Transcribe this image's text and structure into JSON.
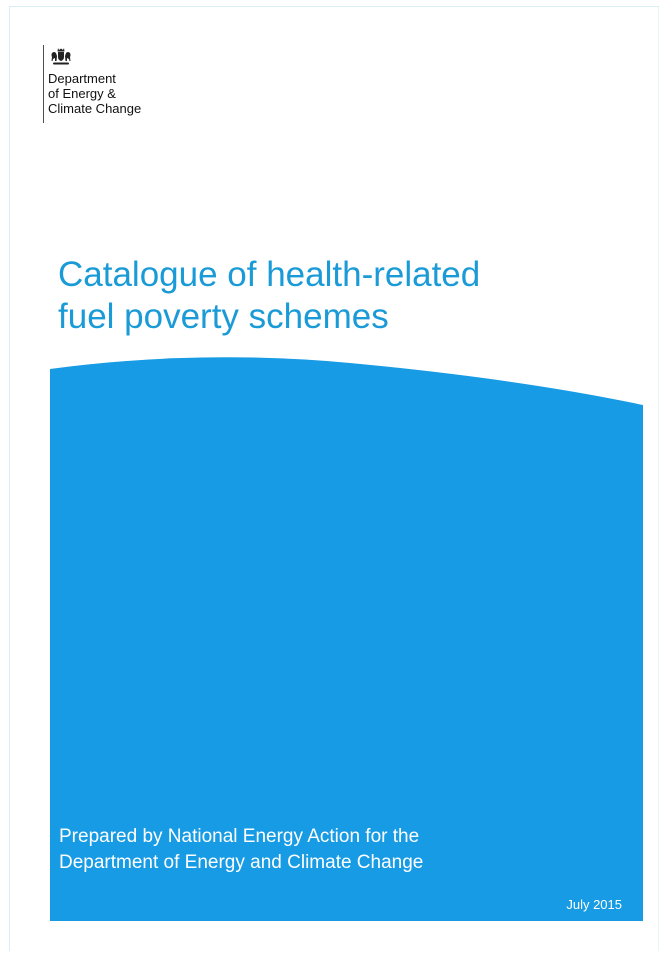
{
  "header": {
    "organisation_lines": [
      "Department",
      "of Energy &",
      "Climate Change"
    ]
  },
  "cover": {
    "title_lines": [
      "Catalogue of health-related",
      "fuel poverty schemes"
    ],
    "prepared_by_lines": [
      "Prepared by National Energy Action for the",
      "Department of Energy and Climate Change"
    ],
    "date": "July 2015"
  },
  "colors": {
    "title_blue": "#1a9bd7",
    "panel_blue": "#169be4",
    "logo_text": "#111111"
  },
  "icons": {
    "crest": "royal-coat-of-arms-icon"
  }
}
